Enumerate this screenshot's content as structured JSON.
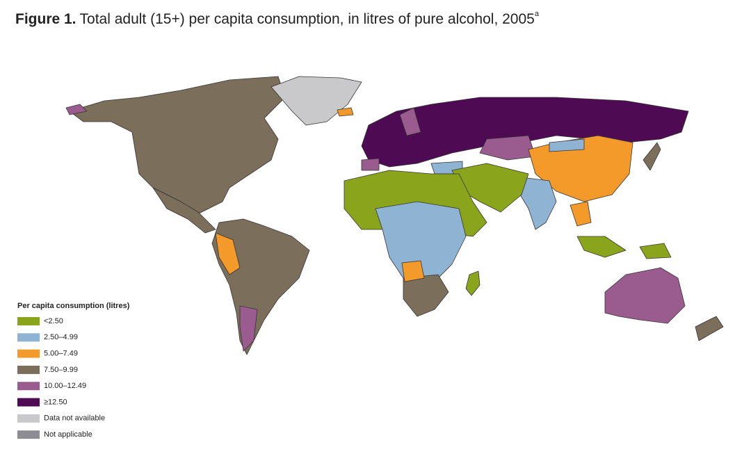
{
  "title_label": "Figure 1.",
  "title": "Total adult (15+) per capita consumption, in litres of pure alcohol, 2005",
  "title_note": "a",
  "legend": {
    "title": "Per capita consumption (litres)",
    "items": [
      {
        "label": "<2.50",
        "color": "#8aa51c"
      },
      {
        "label": "2.50–4.99",
        "color": "#8fb4d3"
      },
      {
        "label": "5.00–7.49",
        "color": "#f39a2a"
      },
      {
        "label": "7.50–9.99",
        "color": "#7b6e5b"
      },
      {
        "label": "10.00–12.49",
        "color": "#9a5b8f"
      },
      {
        "label": "≥12.50",
        "color": "#4e0a52"
      },
      {
        "label": "Data not available",
        "color": "#c9c9cb"
      },
      {
        "label": "Not applicable",
        "color": "#8e8e92"
      }
    ]
  }
}
